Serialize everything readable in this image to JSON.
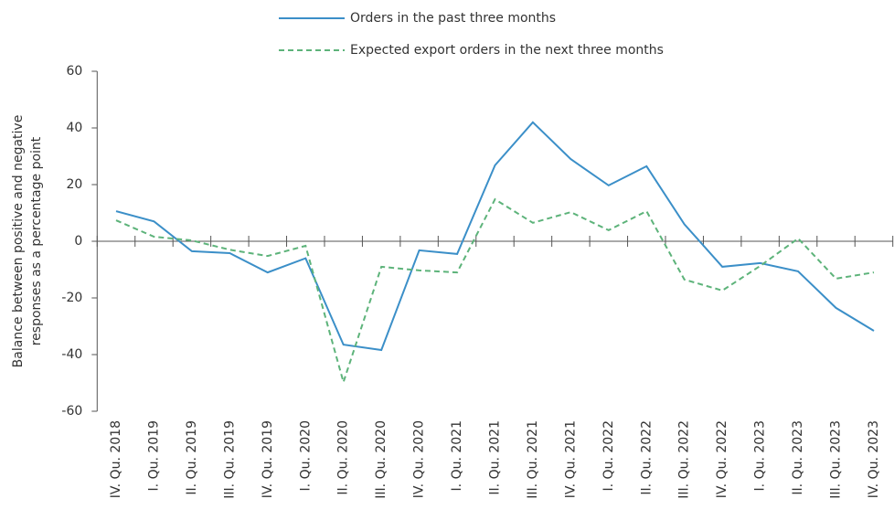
{
  "chart_data": {
    "type": "line",
    "ylabel": [
      "Balance between positive and negative",
      "responses as a percentage point"
    ],
    "categories": [
      "IV. Qu. 2018",
      "I. Qu. 2019",
      "II. Qu. 2019",
      "III. Qu. 2019",
      "IV. Qu. 2019",
      "I. Qu. 2020",
      "II. Qu. 2020",
      "III. Qu. 2020",
      "IV. Qu. 2020",
      "I. Qu. 2021",
      "II. Qu. 2021",
      "III. Qu. 2021",
      "IV. Qu. 2021",
      "I. Qu. 2022",
      "II. Qu. 2022",
      "III. Qu. 2022",
      "IV. Qu. 2022",
      "I. Qu. 2023",
      "II. Qu. 2023",
      "III. Qu. 2023",
      "IV. Qu. 2023"
    ],
    "series": [
      {
        "name": "Orders in the past three months",
        "color": "#3b8fc8",
        "dashed": false,
        "values": [
          10.6,
          7,
          -3.5,
          -4.2,
          -11,
          -6,
          -36.5,
          -38.4,
          -3.2,
          -4.5,
          26.8,
          42,
          29,
          19.7,
          26.5,
          6,
          -9,
          -7.7,
          -10.6,
          -23.5,
          -31.6
        ]
      },
      {
        "name": "Expected export orders in the next three months",
        "color": "#5db37a",
        "dashed": true,
        "values": [
          7.4,
          1.6,
          0.3,
          -3,
          -5.2,
          -1.6,
          -49.7,
          -9,
          -10.3,
          -11,
          14.8,
          6.5,
          10.3,
          3.9,
          10.6,
          -13.5,
          -17.4,
          -8.7,
          1,
          -13.2,
          -11
        ]
      }
    ],
    "ylim": [
      -60,
      60
    ],
    "yticks": [
      -60,
      -40,
      -20,
      0,
      20,
      40,
      60
    ],
    "legend": "top",
    "grid": false
  }
}
